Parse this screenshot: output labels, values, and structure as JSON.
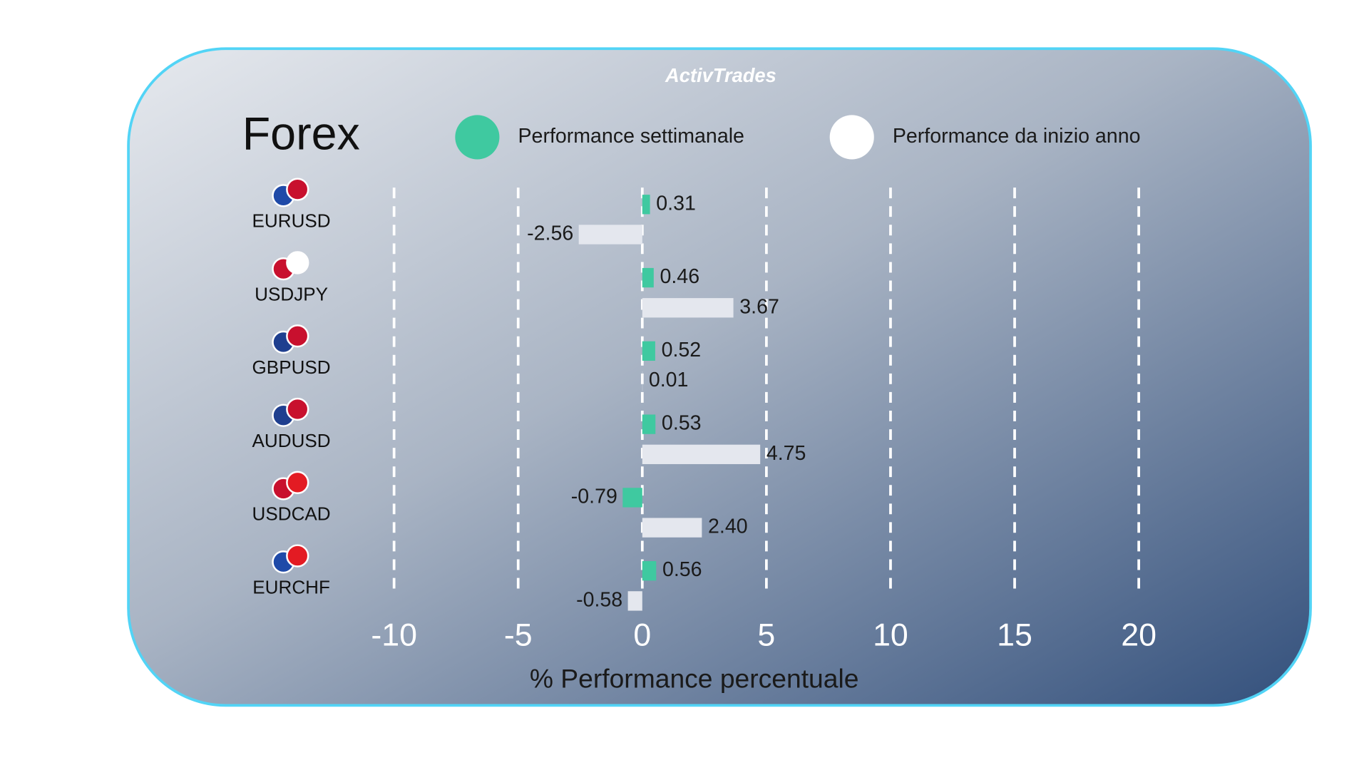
{
  "chart_data": {
    "type": "hbar",
    "brand": "ActivTrades",
    "title": "Forex",
    "x_label": "% Performance percentuale",
    "categories": [
      "EURUSD",
      "USDJPY",
      "GBPUSD",
      "AUDUSD",
      "USDCAD",
      "EURCHF"
    ],
    "series": [
      {
        "name": "Performance settimanale",
        "color": "#3fc9a0",
        "values": [
          0.31,
          0.46,
          0.52,
          0.53,
          -0.79,
          0.56
        ]
      },
      {
        "name": "Performance da inizio anno",
        "color": "#e4e7ee",
        "values": [
          -2.56,
          3.67,
          0.01,
          4.75,
          2.4,
          -0.58
        ],
        "value_labels": [
          "-2.56",
          "3.67",
          "0.01",
          "4.75",
          "2.40",
          "-0.58"
        ]
      }
    ],
    "xlim": [
      -10,
      20
    ],
    "xticks": [
      -10,
      -5,
      0,
      5,
      10,
      15,
      20
    ],
    "grid": true
  }
}
